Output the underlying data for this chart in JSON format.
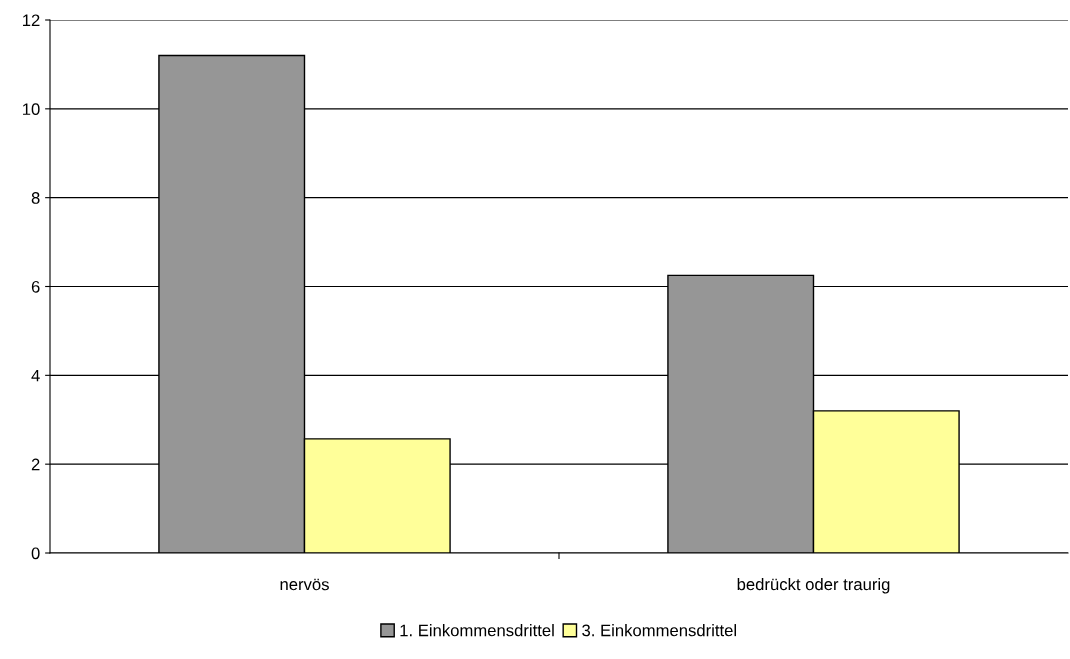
{
  "chart_data": {
    "type": "bar",
    "categories": [
      "nervös",
      "bedrückt oder traurig"
    ],
    "series": [
      {
        "name": "1. Einkommensdrittel",
        "color": "#969696",
        "values": [
          11.2,
          6.25
        ]
      },
      {
        "name": "3. Einkommensdrittel",
        "color": "#ffff99",
        "values": [
          2.57,
          3.2
        ]
      }
    ],
    "ylim": [
      0,
      12
    ],
    "yticks": [
      0,
      2,
      4,
      6,
      8,
      10,
      12
    ],
    "grid": "y",
    "legend": "bottom"
  }
}
